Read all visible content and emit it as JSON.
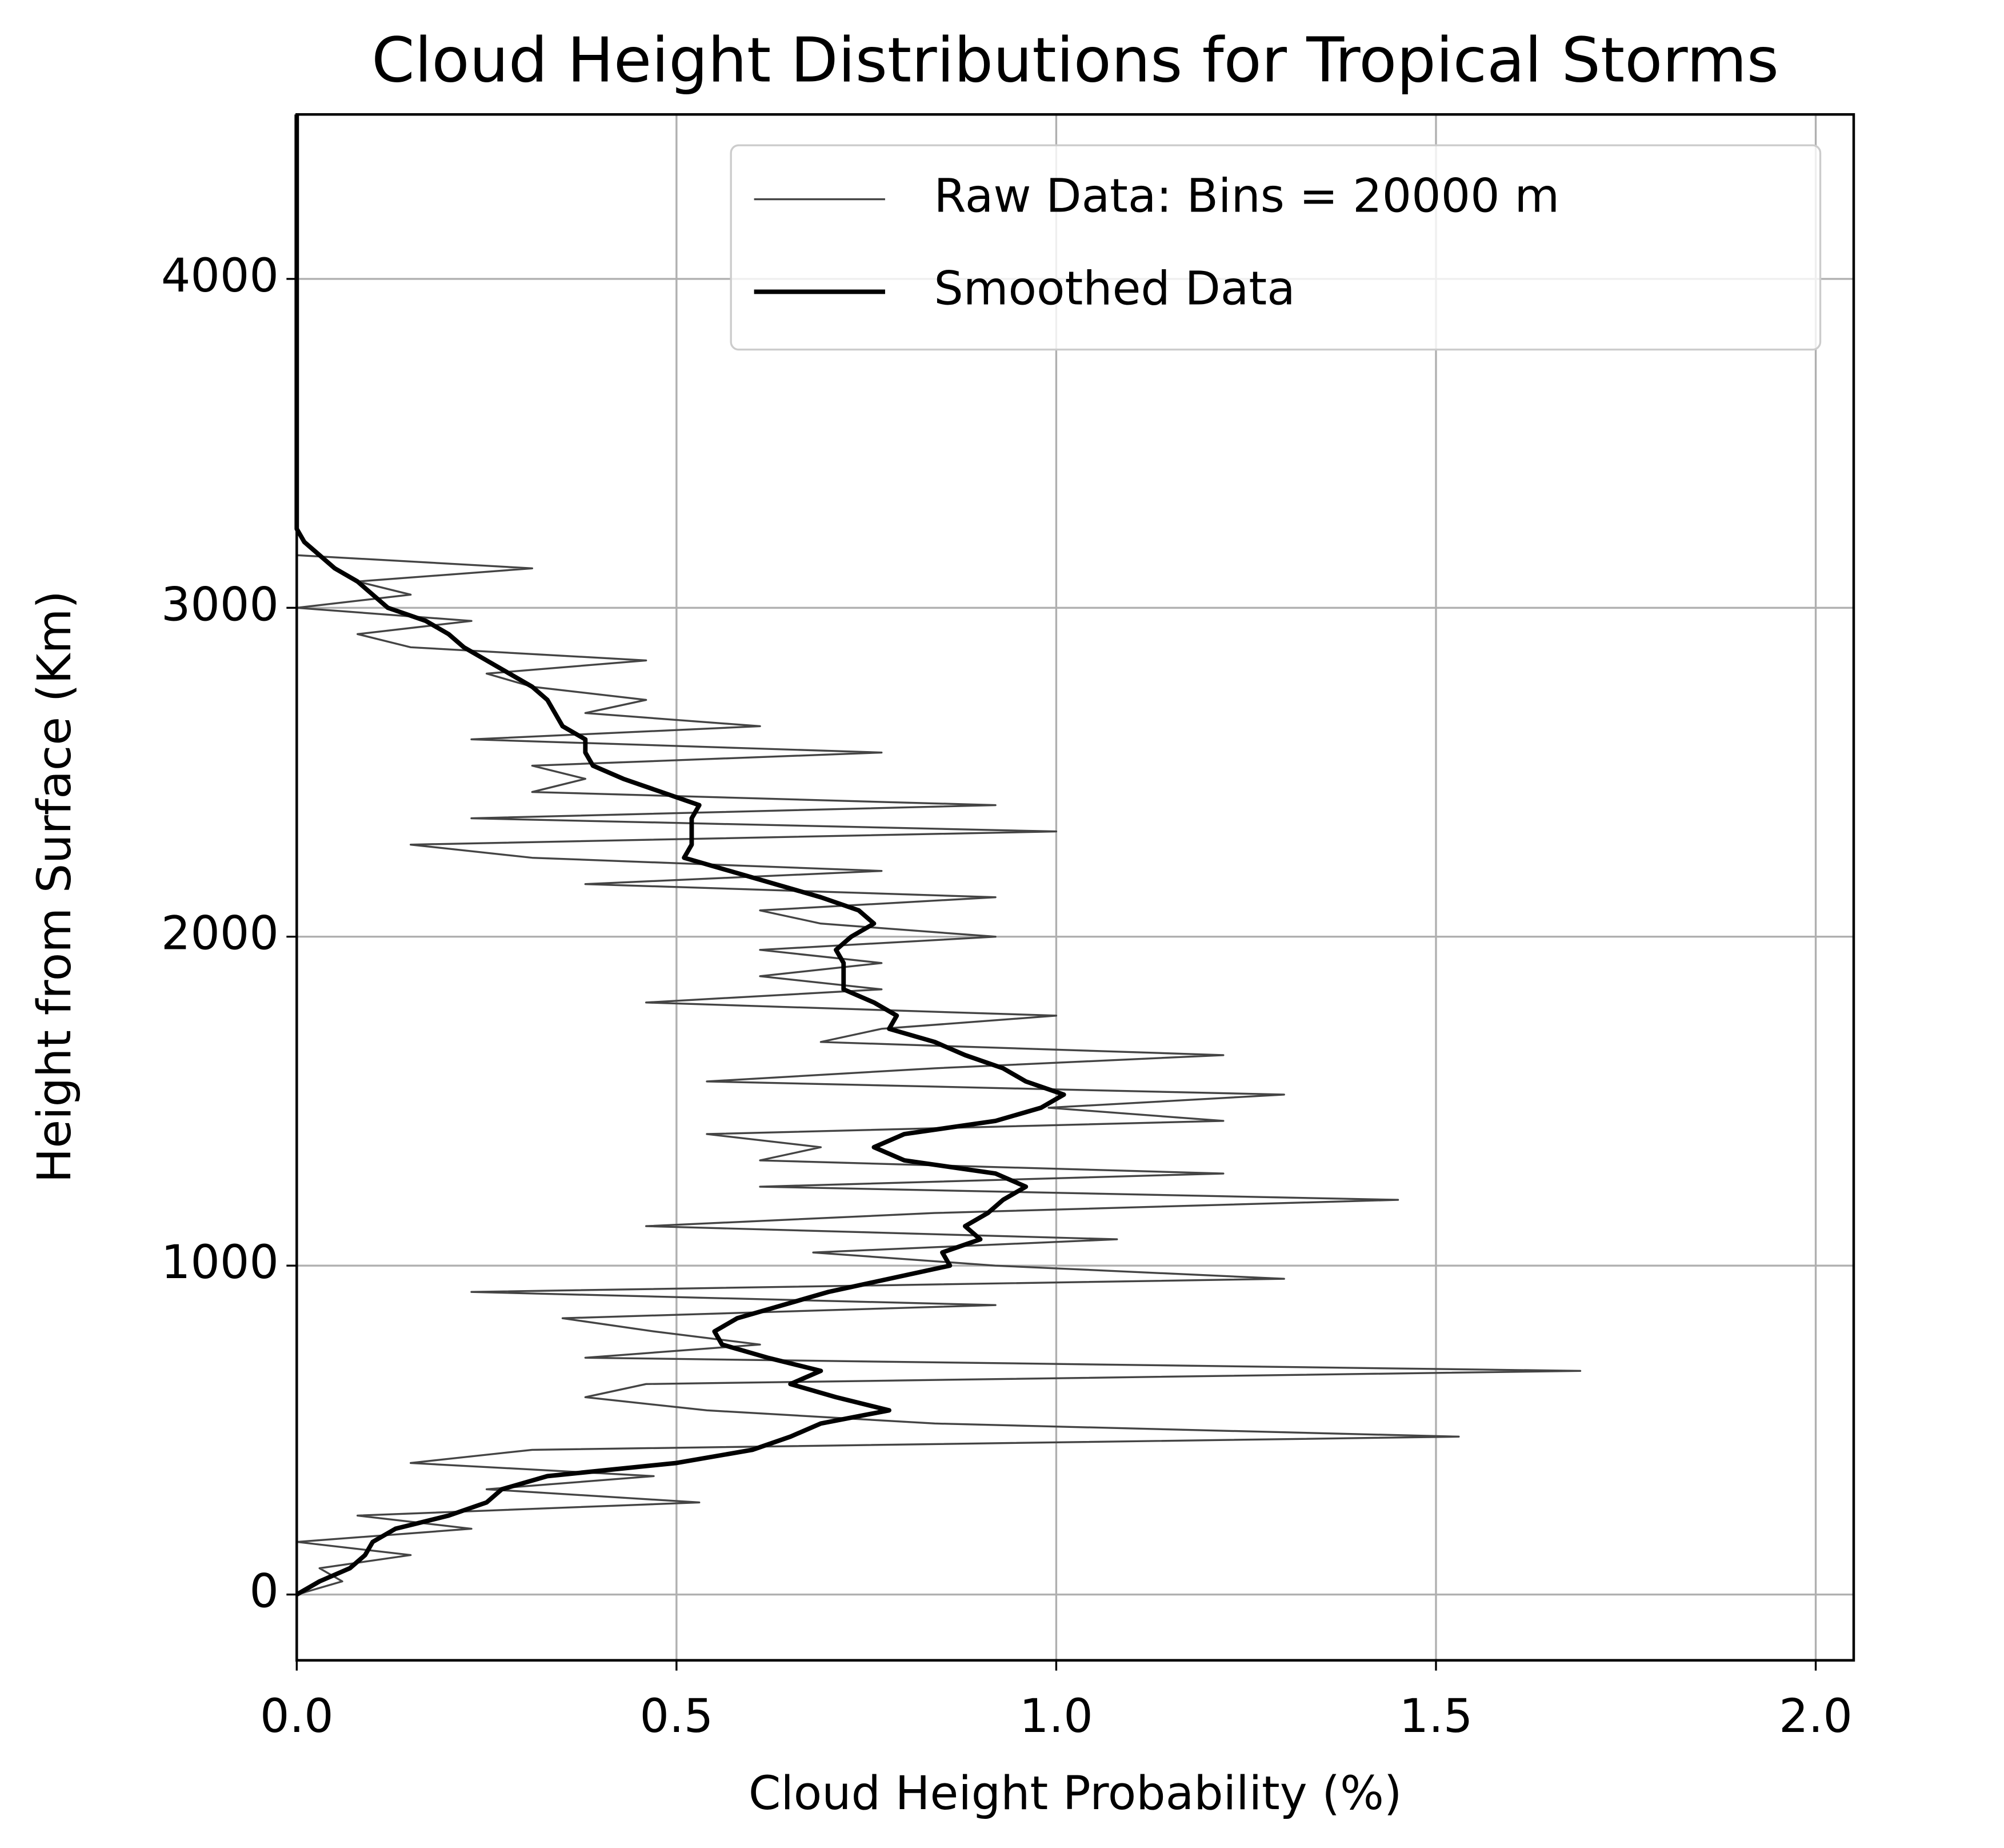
{
  "chart_data": {
    "type": "line",
    "orientation": "horizontal",
    "title": "Cloud Height Distributions for Tropical Storms",
    "x_label": "Cloud Height Probability (%)",
    "y_label": "Height from Surface (Km)",
    "xlim": [
      0,
      2.05
    ],
    "ylim": [
      -200,
      4500
    ],
    "xticks": [
      {
        "value": 0,
        "label": "0.0"
      },
      {
        "value": 0.5,
        "label": "0.5"
      },
      {
        "value": 1,
        "label": "1.0"
      },
      {
        "value": 1.5,
        "label": "1.5"
      },
      {
        "value": 2,
        "label": "2.0"
      }
    ],
    "yticks": [
      0,
      1000,
      2000,
      3000,
      4000
    ],
    "grid": true,
    "legend": "upper right",
    "y": [
      0,
      40,
      80,
      120,
      160,
      200,
      240,
      280,
      320,
      360,
      400,
      440,
      480,
      520,
      560,
      600,
      640,
      680,
      720,
      760,
      800,
      840,
      880,
      920,
      960,
      1000,
      1040,
      1080,
      1120,
      1160,
      1200,
      1240,
      1280,
      1320,
      1360,
      1400,
      1440,
      1480,
      1520,
      1560,
      1600,
      1640,
      1680,
      1720,
      1760,
      1800,
      1840,
      1880,
      1920,
      1960,
      2000,
      2040,
      2080,
      2120,
      2160,
      2200,
      2240,
      2280,
      2320,
      2360,
      2400,
      2440,
      2480,
      2520,
      2560,
      2600,
      2640,
      2680,
      2720,
      2760,
      2800,
      2840,
      2880,
      2920,
      2960,
      3000,
      3040,
      3080,
      3120,
      3160,
      3200,
      3240,
      4500
    ],
    "series": [
      {
        "name": "Raw Data: Bins = 20000 m",
        "color": "#444444",
        "width": 1.5,
        "values": [
          0,
          0.06,
          0.03,
          0.15,
          0,
          0.23,
          0.08,
          0.53,
          0.25,
          0.47,
          0.15,
          0.31,
          1.53,
          0.84,
          0.54,
          0.38,
          0.46,
          1.69,
          0.38,
          0.61,
          0.47,
          0.35,
          0.92,
          0.23,
          1.3,
          0.92,
          0.68,
          1.08,
          0.46,
          0.84,
          1.45,
          0.61,
          1.22,
          0.61,
          0.69,
          0.54,
          1.22,
          0.99,
          1.3,
          0.54,
          0.84,
          1.22,
          0.69,
          0.77,
          1,
          0.46,
          0.77,
          0.61,
          0.77,
          0.61,
          0.92,
          0.69,
          0.61,
          0.92,
          0.38,
          0.77,
          0.31,
          0.15,
          1,
          0.23,
          0.92,
          0.31,
          0.38,
          0.31,
          0.77,
          0.23,
          0.61,
          0.38,
          0.46,
          0.31,
          0.25,
          0.46,
          0.15,
          0.08,
          0.23,
          0,
          0.15,
          0.08,
          0.31,
          0,
          0,
          0,
          0
        ]
      },
      {
        "name": "Smoothed Data",
        "color": "#000000",
        "width": 3.5,
        "values": [
          0,
          0.03,
          0.07,
          0.09,
          0.1,
          0.13,
          0.2,
          0.25,
          0.27,
          0.33,
          0.5,
          0.6,
          0.65,
          0.69,
          0.78,
          0.71,
          0.65,
          0.69,
          0.62,
          0.56,
          0.55,
          0.58,
          0.64,
          0.7,
          0.78,
          0.86,
          0.85,
          0.9,
          0.88,
          0.91,
          0.93,
          0.96,
          0.92,
          0.8,
          0.76,
          0.8,
          0.92,
          0.98,
          1.01,
          0.96,
          0.93,
          0.88,
          0.84,
          0.78,
          0.79,
          0.76,
          0.72,
          0.72,
          0.72,
          0.71,
          0.73,
          0.76,
          0.74,
          0.69,
          0.63,
          0.57,
          0.51,
          0.52,
          0.52,
          0.52,
          0.53,
          0.48,
          0.43,
          0.39,
          0.38,
          0.38,
          0.35,
          0.34,
          0.33,
          0.31,
          0.28,
          0.25,
          0.22,
          0.2,
          0.17,
          0.12,
          0.1,
          0.08,
          0.05,
          0.03,
          0.01,
          0,
          0
        ]
      }
    ]
  }
}
